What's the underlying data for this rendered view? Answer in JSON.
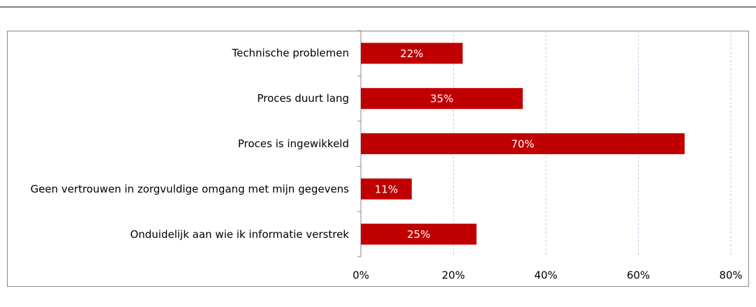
{
  "chart_data": {
    "type": "bar",
    "orientation": "horizontal",
    "categories": [
      "Technische problemen",
      "Proces duurt lang",
      "Proces is ingewikkeld",
      "Geen vertrouwen in zorgvuldige omgang met mijn gegevens",
      "Onduidelijk aan wie ik informatie verstrek"
    ],
    "values": [
      22,
      35,
      70,
      11,
      25
    ],
    "value_labels": [
      "22%",
      "35%",
      "70%",
      "11%",
      "25%"
    ],
    "color": "#c00000",
    "xlim": [
      0,
      80
    ],
    "xticks": [
      {
        "value": 0,
        "label": "0%"
      },
      {
        "value": 20,
        "label": "20%"
      },
      {
        "value": 40,
        "label": "40%"
      },
      {
        "value": 60,
        "label": "60%"
      },
      {
        "value": 80,
        "label": "80%"
      }
    ],
    "grid": true
  }
}
